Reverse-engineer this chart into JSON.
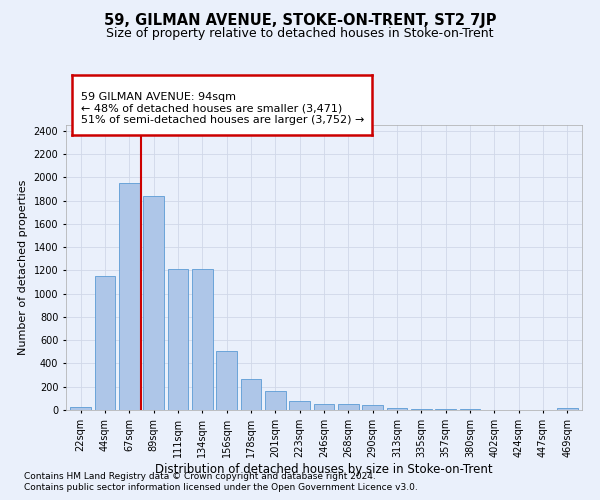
{
  "title": "59, GILMAN AVENUE, STOKE-ON-TRENT, ST2 7JP",
  "subtitle": "Size of property relative to detached houses in Stoke-on-Trent",
  "xlabel": "Distribution of detached houses by size in Stoke-on-Trent",
  "ylabel": "Number of detached properties",
  "categories": [
    "22sqm",
    "44sqm",
    "67sqm",
    "89sqm",
    "111sqm",
    "134sqm",
    "156sqm",
    "178sqm",
    "201sqm",
    "223sqm",
    "246sqm",
    "268sqm",
    "290sqm",
    "313sqm",
    "335sqm",
    "357sqm",
    "380sqm",
    "402sqm",
    "424sqm",
    "447sqm",
    "469sqm"
  ],
  "values": [
    30,
    1150,
    1950,
    1840,
    1215,
    1215,
    510,
    265,
    160,
    80,
    50,
    48,
    40,
    20,
    12,
    10,
    5,
    2,
    1,
    1,
    18
  ],
  "bar_color": "#aec6e8",
  "bar_edge_color": "#5b9bd5",
  "property_line_x": 2.5,
  "annotation_text": "59 GILMAN AVENUE: 94sqm\n← 48% of detached houses are smaller (3,471)\n51% of semi-detached houses are larger (3,752) →",
  "annotation_box_color": "#ffffff",
  "annotation_box_edge": "#cc0000",
  "line_color": "#cc0000",
  "ylim": [
    0,
    2450
  ],
  "yticks": [
    0,
    200,
    400,
    600,
    800,
    1000,
    1200,
    1400,
    1600,
    1800,
    2000,
    2200,
    2400
  ],
  "footnote1": "Contains HM Land Registry data © Crown copyright and database right 2024.",
  "footnote2": "Contains public sector information licensed under the Open Government Licence v3.0.",
  "background_color": "#eaf0fb",
  "plot_bg_color": "#eaf0fb",
  "grid_color": "#d0d8e8",
  "title_fontsize": 10.5,
  "subtitle_fontsize": 9,
  "xlabel_fontsize": 8.5,
  "ylabel_fontsize": 8,
  "tick_fontsize": 7,
  "footnote_fontsize": 6.5,
  "annotation_fontsize": 8
}
